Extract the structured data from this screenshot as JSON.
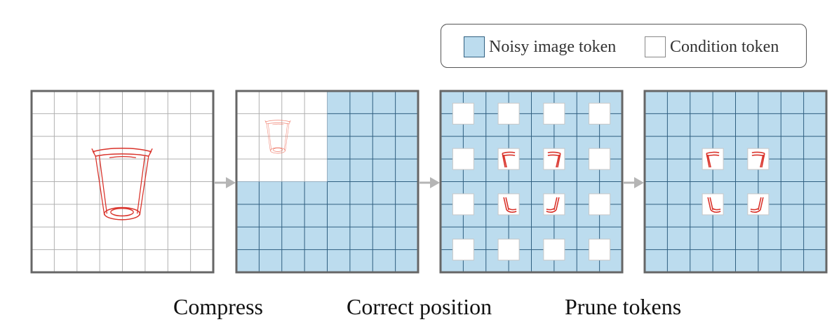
{
  "legend": {
    "noisy_label": "Noisy image token",
    "condition_label": "Condition token"
  },
  "captions": {
    "compress": "Compress",
    "correct_position": "Correct position",
    "prune_tokens": "Prune tokens"
  },
  "grid": {
    "rows": 8,
    "cols": 8
  },
  "colors": {
    "noisy_fill": "#bcdcee",
    "noisy_grid": "#2f5f80",
    "condition_fill": "#ffffff",
    "condition_grid": "#b0b0b0",
    "frame": "#666666",
    "sketch": "#d9322a",
    "sketch_faded": "#f08070",
    "arrow": "#b5b5b5"
  },
  "panels": [
    {
      "name": "original-condition-panel",
      "kind": "full-condition"
    },
    {
      "name": "compressed-condition-panel",
      "kind": "compressed"
    },
    {
      "name": "sparse-condition-panel",
      "kind": "sparse"
    },
    {
      "name": "pruned-condition-panel",
      "kind": "pruned"
    }
  ]
}
